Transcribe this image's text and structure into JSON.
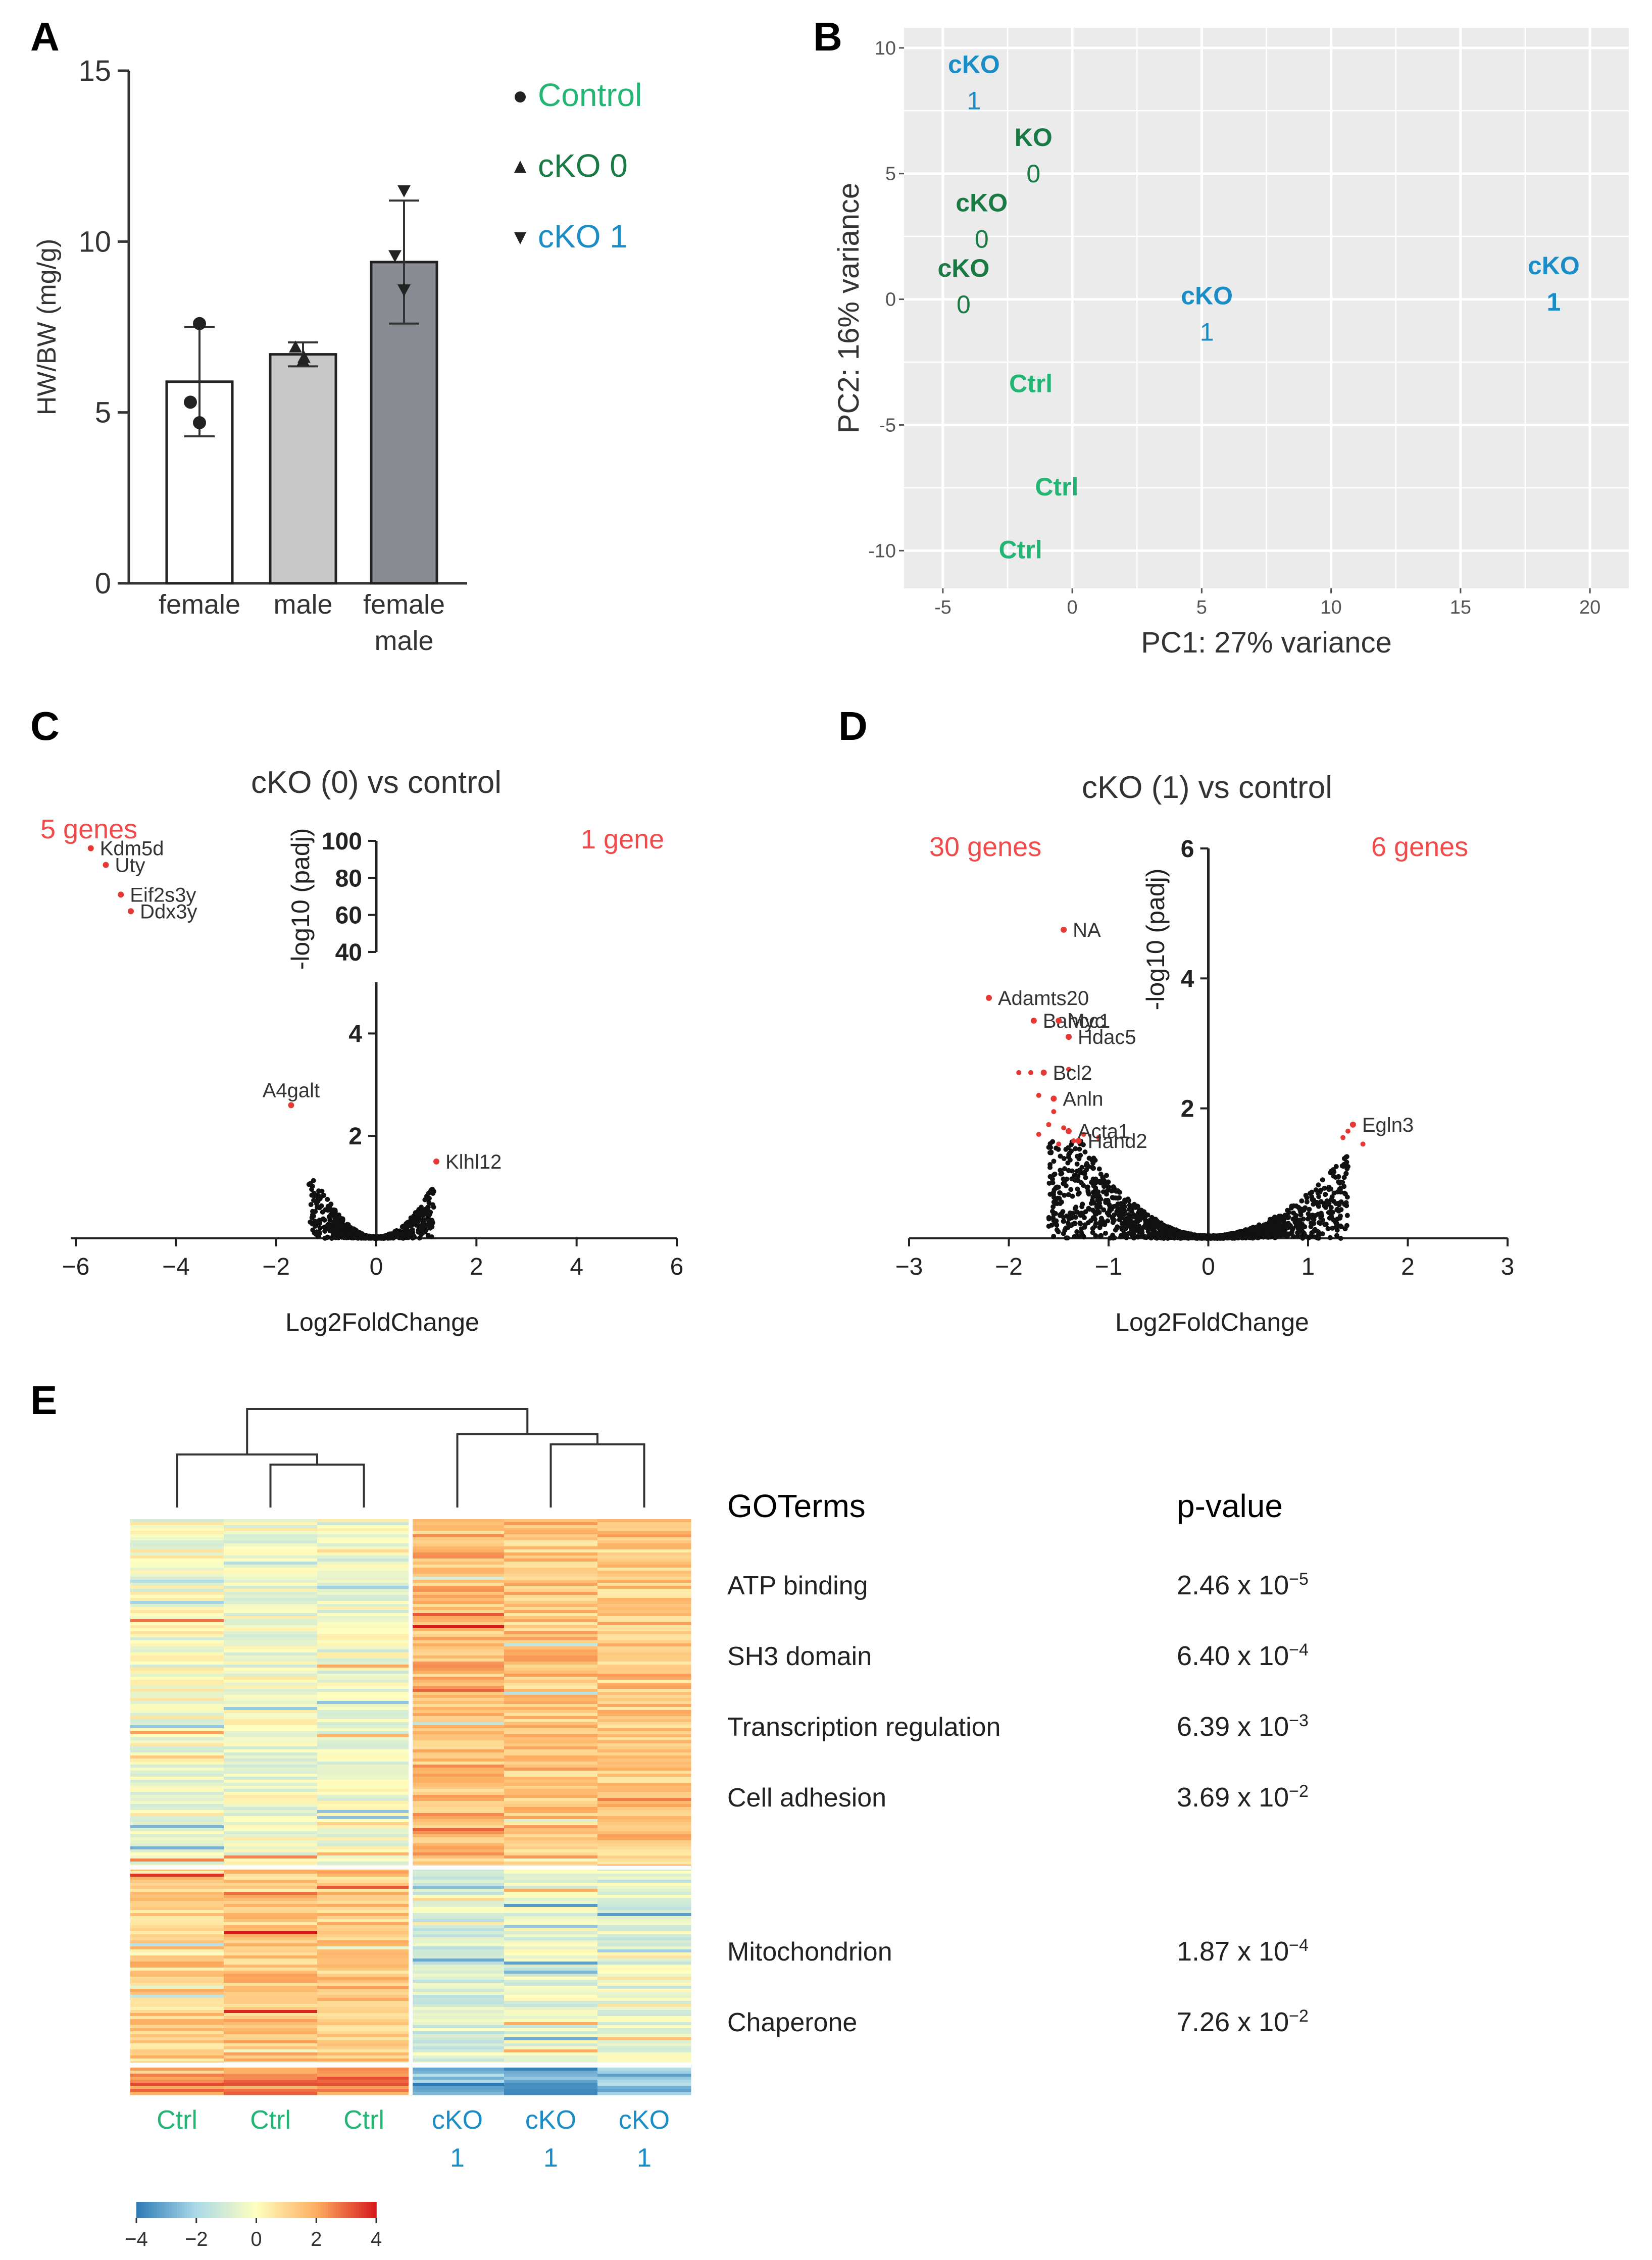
{
  "panels": {
    "A": "A",
    "B": "B",
    "C": "C",
    "D": "D",
    "E": "E"
  },
  "chart_data": [
    {
      "panel": "A",
      "type": "bar",
      "categories": [
        [
          "female"
        ],
        [
          "male"
        ],
        [
          "female",
          "male"
        ]
      ],
      "values": [
        5.9,
        6.7,
        9.4
      ],
      "error": [
        1.6,
        0.35,
        1.8
      ],
      "points": [
        [
          7.6,
          5.3,
          4.7
        ],
        [
          6.9,
          6.6,
          6.5
        ],
        [
          11.5,
          9.6,
          8.6
        ]
      ],
      "bar_colors": [
        "#ffffff",
        "#c8c8c8",
        "#898d93"
      ],
      "ylabel": "HW/BW (mg/g)",
      "ylim": [
        0,
        15
      ],
      "yticks": [
        "0",
        "5",
        "10",
        "15"
      ],
      "legend": [
        {
          "label": "Control",
          "marker": "●",
          "color": "#22b573"
        },
        {
          "label": "cKO 0",
          "marker": "▲",
          "color": "#1a7a43"
        },
        {
          "label": "cKO 1",
          "marker": "▼",
          "color": "#1a8cc6"
        }
      ]
    },
    {
      "panel": "B",
      "type": "scatter",
      "xlabel": "PC1: 27% variance",
      "ylabel": "PC2: 16% variance",
      "xlim": [
        -6.5,
        21.5
      ],
      "ylim": [
        -11.5,
        10.8
      ],
      "xticks": [
        "-5",
        "0",
        "5",
        "10",
        "15",
        "20"
      ],
      "yticks": [
        "-10",
        "-5",
        "0",
        "5",
        "10"
      ],
      "points": [
        {
          "x": -3.8,
          "y": 9.0,
          "line1": "cKO",
          "line2": "1",
          "group": "cKO1"
        },
        {
          "x": -1.5,
          "y": 6.1,
          "line1": "KO",
          "line2": "0",
          "group": "cKO0"
        },
        {
          "x": -3.5,
          "y": 3.5,
          "line1": "cKO",
          "line2": "0",
          "group": "cKO0"
        },
        {
          "x": -4.2,
          "y": 0.9,
          "line1": "cKO",
          "line2": "0",
          "group": "cKO0"
        },
        {
          "x": 5.2,
          "y": -0.2,
          "line1": "cKO",
          "line2": "1",
          "group": "cKO1"
        },
        {
          "x": 18.6,
          "y": 1.0,
          "line1": "cKO",
          "line2": "1",
          "group": "cKO1"
        },
        {
          "x": -1.6,
          "y": -3.7,
          "line1": "Ctrl",
          "line2": "",
          "group": "Ctrl"
        },
        {
          "x": -0.6,
          "y": -7.8,
          "line1": "Ctrl",
          "line2": "",
          "group": "Ctrl"
        },
        {
          "x": -2.0,
          "y": -10.3,
          "line1": "Ctrl",
          "line2": "",
          "group": "Ctrl"
        }
      ],
      "colors": {
        "cKO1": "#1a8cc6",
        "cKO0": "#1a7a43",
        "Ctrl": "#22b573"
      }
    },
    {
      "panel": "C",
      "type": "scatter",
      "title": "cKO (0) vs control",
      "xlabel": "Log2FoldChange",
      "ylabel": "-log10 (padj)",
      "xlim": [
        -6,
        6
      ],
      "xticks": [
        "−6",
        "−4",
        "−2",
        "0",
        "2",
        "4",
        "6"
      ],
      "ylim_lower": [
        0,
        5
      ],
      "yticks_lower": [
        "2",
        "4"
      ],
      "ylim_upper": [
        40,
        100
      ],
      "yticks_upper": [
        "40",
        "60",
        "80",
        "100"
      ],
      "left_count": "5 genes",
      "right_count": "1 gene",
      "labeled_points": [
        {
          "label": "Kdm5d",
          "x": -5.7,
          "y": 96,
          "axis": "upper"
        },
        {
          "label": "Uty",
          "x": -5.4,
          "y": 87,
          "axis": "upper"
        },
        {
          "label": "Eif2s3y",
          "x": -5.1,
          "y": 71,
          "axis": "upper"
        },
        {
          "label": "Ddx3y",
          "x": -4.9,
          "y": 62,
          "axis": "upper"
        },
        {
          "label": "A4galt",
          "x": -1.7,
          "y": 2.6,
          "axis": "lower"
        },
        {
          "label": "Klhl12",
          "x": 1.2,
          "y": 1.5,
          "axis": "lower"
        }
      ]
    },
    {
      "panel": "D",
      "type": "scatter",
      "title": "cKO (1) vs control",
      "xlabel": "Log2FoldChange",
      "ylabel": "-log10 (padj)",
      "xlim": [
        -3,
        3
      ],
      "xticks": [
        "−3",
        "−2",
        "−1",
        "0",
        "1",
        "2",
        "3"
      ],
      "ylim": [
        0,
        6
      ],
      "yticks": [
        "2",
        "4",
        "6"
      ],
      "left_count": "30 genes",
      "right_count": "6 genes",
      "labeled_points": [
        {
          "label": "NA",
          "x": -1.45,
          "y": 4.75
        },
        {
          "label": "Adamts20",
          "x": -2.2,
          "y": 3.7
        },
        {
          "label": "Bahcc1",
          "x": -1.75,
          "y": 3.35
        },
        {
          "label": "Myc",
          "x": -1.5,
          "y": 3.35
        },
        {
          "label": "Hdac5",
          "x": -1.4,
          "y": 3.1
        },
        {
          "label": "Bcl2",
          "x": -1.65,
          "y": 2.55
        },
        {
          "label": "Anln",
          "x": -1.55,
          "y": 2.15
        },
        {
          "label": "Acta1",
          "x": -1.4,
          "y": 1.65
        },
        {
          "label": "Hand2",
          "x": -1.3,
          "y": 1.5
        },
        {
          "label": "Egln3",
          "x": 1.45,
          "y": 1.75
        }
      ]
    },
    {
      "panel": "E",
      "type": "heatmap",
      "columns": [
        {
          "line1": "Ctrl",
          "line2": "",
          "group": "Ctrl"
        },
        {
          "line1": "Ctrl",
          "line2": "",
          "group": "Ctrl"
        },
        {
          "line1": "Ctrl",
          "line2": "",
          "group": "Ctrl"
        },
        {
          "line1": "cKO",
          "line2": "1",
          "group": "cKO1"
        },
        {
          "line1": "cKO",
          "line2": "1",
          "group": "cKO1"
        },
        {
          "line1": "cKO",
          "line2": "1",
          "group": "cKO1"
        }
      ],
      "colorbar_ticks": [
        "−4",
        "−2",
        "0",
        "2",
        "4"
      ],
      "colorbar_range": [
        -4,
        4
      ],
      "colors": {
        "Ctrl": "#22b573",
        "cKO1": "#1a8cc6"
      }
    }
  ],
  "go_terms": {
    "header_term": "GOTerms",
    "header_p": "p-value",
    "rows": [
      {
        "term": "ATP binding",
        "base": "2.46 x 10",
        "exp": "−5"
      },
      {
        "term": "SH3 domain",
        "base": "6.40 x 10",
        "exp": "−4"
      },
      {
        "term": "Transcription regulation",
        "base": "6.39 x 10",
        "exp": "−3"
      },
      {
        "term": "Cell adhesion",
        "base": "3.69 x 10",
        "exp": "−2"
      },
      {
        "term": "Mitochondrion",
        "base": "1.87 x 10",
        "exp": "−4"
      },
      {
        "term": "Chaperone",
        "base": "7.26 x 10",
        "exp": "−2"
      }
    ]
  }
}
